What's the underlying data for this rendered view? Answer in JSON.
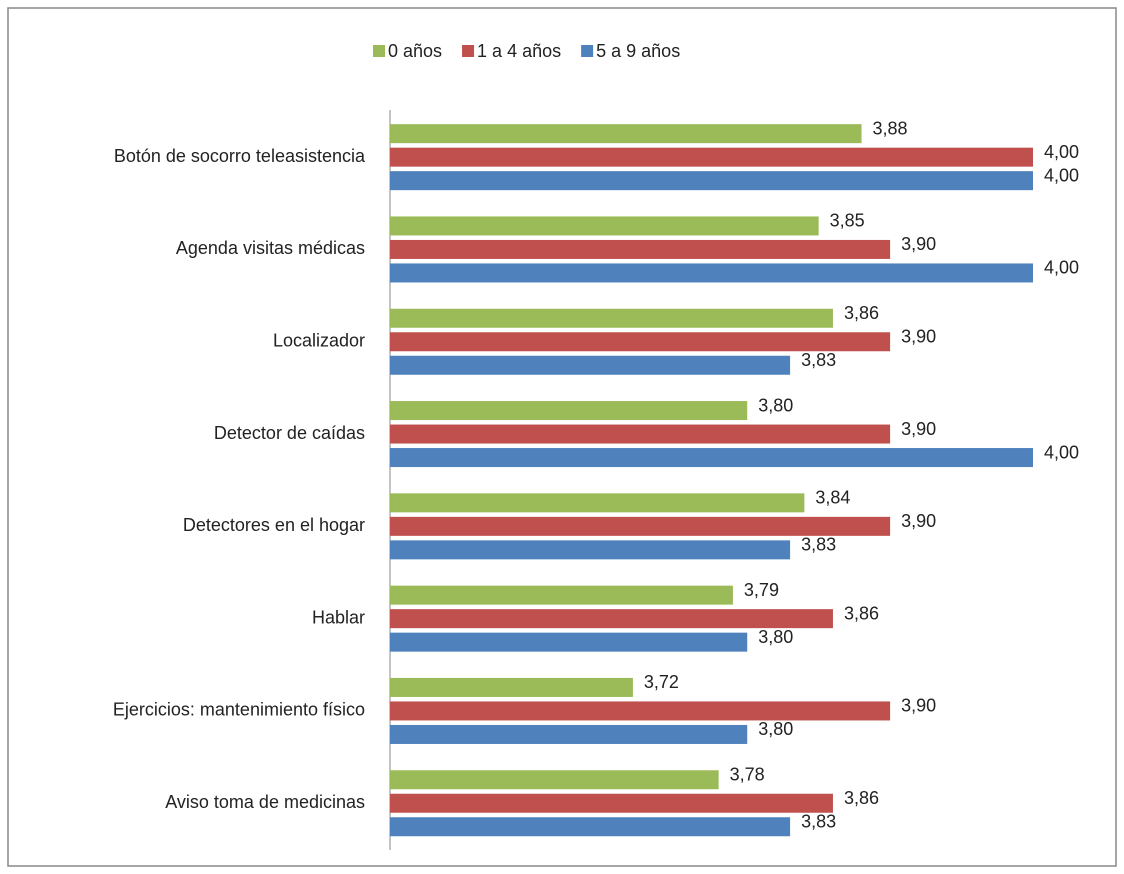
{
  "chart_data": {
    "type": "bar",
    "orientation": "horizontal",
    "categories": [
      "Botón de socorro teleasistencia",
      "Agenda visitas médicas",
      "Localizador",
      "Detector de caídas",
      "Detectores en el hogar",
      "Hablar",
      "Ejercicios: mantenimiento físico",
      "Aviso toma de medicinas"
    ],
    "series": [
      {
        "name": "0 años",
        "color": "#9bbb59",
        "values": [
          3.88,
          3.85,
          3.86,
          3.8,
          3.84,
          3.79,
          3.72,
          3.78
        ],
        "value_labels": [
          "3,88",
          "3,85",
          "3,86",
          "3,80",
          "3,84",
          "3,79",
          "3,72",
          "3,78"
        ]
      },
      {
        "name": "1 a 4 años",
        "color": "#c0504d",
        "values": [
          4.0,
          3.9,
          3.9,
          3.9,
          3.9,
          3.86,
          3.9,
          3.86
        ],
        "value_labels": [
          "4,00",
          "3,90",
          "3,90",
          "3,90",
          "3,90",
          "3,86",
          "3,90",
          "3,86"
        ]
      },
      {
        "name": "5 a 9 años",
        "color": "#4f81bd",
        "values": [
          4.0,
          4.0,
          3.83,
          4.0,
          3.83,
          3.8,
          3.8,
          3.83
        ],
        "value_labels": [
          "4,00",
          "4,00",
          "3,83",
          "4,00",
          "3,83",
          "3,80",
          "3,80",
          "3,83"
        ]
      }
    ],
    "xlim": [
      3.55,
      4.0
    ],
    "legend": "top"
  }
}
